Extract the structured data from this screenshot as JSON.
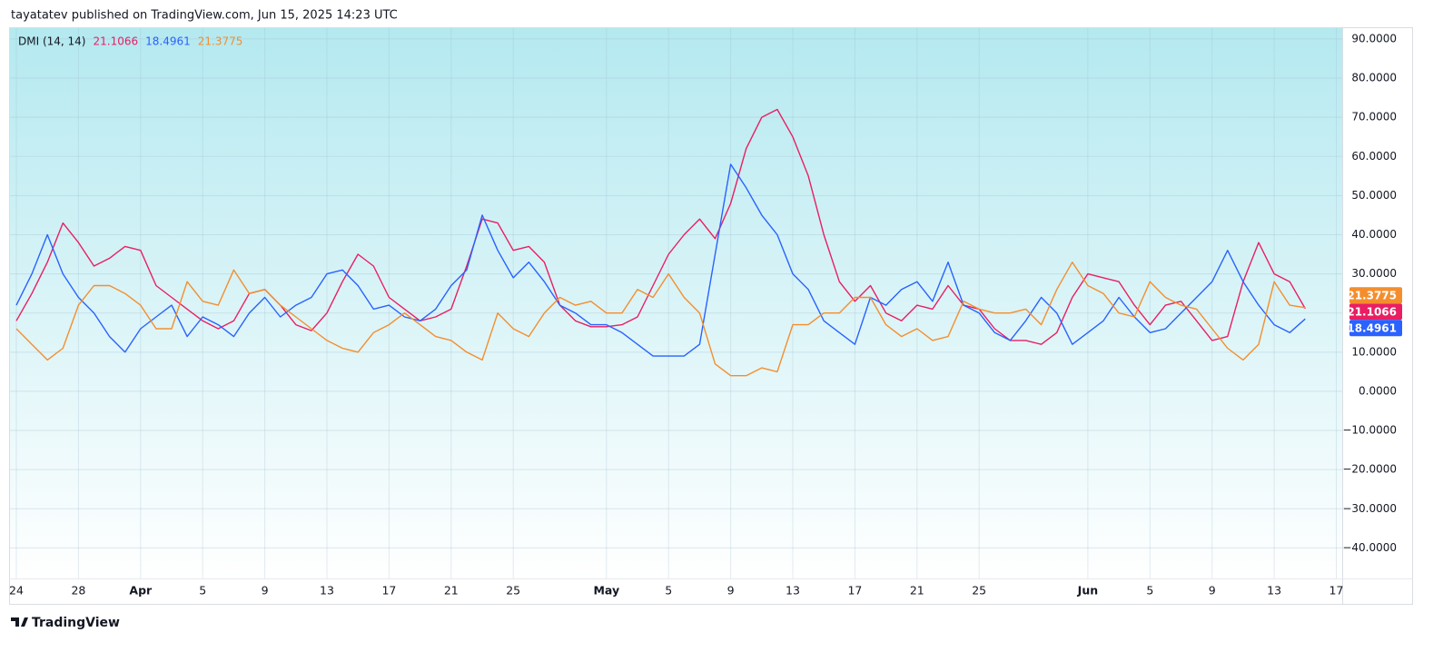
{
  "header": "tayatatev published on TradingView.com, Jun 15, 2025 14:23 UTC",
  "footer": "TradingView",
  "chart_data": {
    "type": "line",
    "indicator": "DMI (14, 14)",
    "categories": [
      "24",
      null,
      null,
      null,
      "28",
      null,
      null,
      null,
      "Apr",
      null,
      null,
      null,
      "5",
      null,
      null,
      null,
      "9",
      null,
      null,
      null,
      "13",
      null,
      null,
      null,
      "17",
      null,
      null,
      null,
      "21",
      null,
      null,
      null,
      "25",
      null,
      null,
      null,
      null,
      null,
      "May",
      null,
      null,
      null,
      "5",
      null,
      null,
      null,
      "9",
      null,
      null,
      null,
      "13",
      null,
      null,
      null,
      "17",
      null,
      null,
      null,
      "21",
      null,
      null,
      null,
      "25",
      null,
      null,
      null,
      null,
      null,
      null,
      "Jun",
      null,
      null,
      null,
      "5",
      null,
      null,
      null,
      "9",
      null,
      null,
      null,
      "13",
      null,
      null,
      null,
      "17"
    ],
    "series": [
      {
        "color": "#e91e63",
        "values": [
          18,
          25,
          33,
          43,
          38,
          32,
          34,
          37,
          36,
          27,
          24,
          21,
          18,
          16,
          18,
          25,
          26,
          22,
          17,
          15.5,
          20,
          28,
          35,
          32,
          24,
          21,
          18,
          19,
          21,
          32,
          44,
          43,
          36,
          37,
          33,
          22,
          18,
          16.5,
          16.5,
          17,
          19,
          27,
          35,
          40,
          44,
          39,
          48,
          62,
          70,
          72,
          65,
          55,
          40,
          28,
          23,
          27,
          20,
          18,
          22,
          21,
          27,
          22,
          21,
          16,
          13,
          13,
          12,
          15,
          24,
          30,
          29,
          28,
          22,
          17,
          22,
          23,
          18,
          13,
          14,
          28,
          38,
          30,
          28,
          21.1066,
          null,
          null
        ]
      },
      {
        "color": "#2962ff",
        "values": [
          22,
          30,
          40,
          30,
          24,
          20,
          14,
          10,
          16,
          19,
          22,
          14,
          19,
          17,
          14,
          20,
          24,
          19,
          22,
          24,
          30,
          31,
          27,
          21,
          22,
          19,
          18,
          21,
          27,
          31,
          45,
          36,
          29,
          33,
          28,
          22,
          20,
          17,
          17,
          15,
          12,
          9,
          9,
          9,
          12,
          35,
          58,
          52,
          45,
          40,
          30,
          26,
          18,
          15,
          12,
          24,
          22,
          26,
          28,
          23,
          33,
          22,
          20,
          15,
          13,
          18,
          24,
          20,
          12,
          15,
          18,
          24,
          19,
          15,
          16,
          20,
          24,
          28,
          36,
          28,
          22,
          17,
          15,
          18.4961,
          null,
          null
        ]
      },
      {
        "color": "#f48e2d",
        "values": [
          16,
          12,
          8,
          11,
          22,
          27,
          27,
          25,
          22,
          16,
          16,
          28,
          23,
          22,
          31,
          25,
          26,
          22,
          19,
          16,
          13,
          11,
          10,
          15,
          17,
          20,
          17,
          14,
          13,
          10,
          8,
          20,
          16,
          14,
          20,
          24,
          22,
          23,
          20,
          20,
          26,
          24,
          30,
          24,
          20,
          7,
          4,
          4,
          6,
          5,
          17,
          17,
          20,
          20,
          24,
          24,
          17,
          14,
          16,
          13,
          14,
          23,
          21,
          20,
          20,
          21,
          17,
          26,
          33,
          27,
          25,
          20,
          19,
          28,
          24,
          22,
          21,
          16,
          11,
          8,
          12,
          28,
          22,
          21.3775,
          null,
          null
        ]
      }
    ],
    "ylim": [
      -47.8,
      93.0
    ],
    "yticks": [
      {
        "value": 90,
        "label": "90.0000"
      },
      {
        "value": 80,
        "label": "80.0000"
      },
      {
        "value": 70,
        "label": "70.0000"
      },
      {
        "value": 60,
        "label": "60.0000"
      },
      {
        "value": 50,
        "label": "50.0000"
      },
      {
        "value": 40,
        "label": "40.0000"
      },
      {
        "value": 30,
        "label": "30.0000"
      },
      {
        "value": 20,
        "label": "20.0000"
      },
      {
        "value": 10,
        "label": "10.0000"
      },
      {
        "value": 0,
        "label": "0.0000"
      },
      {
        "value": -10,
        "label": "−10.0000"
      },
      {
        "value": -20,
        "label": "−20.0000"
      },
      {
        "value": -30,
        "label": "−30.0000"
      },
      {
        "value": -40,
        "label": "−40.0000"
      }
    ],
    "grid": true
  }
}
